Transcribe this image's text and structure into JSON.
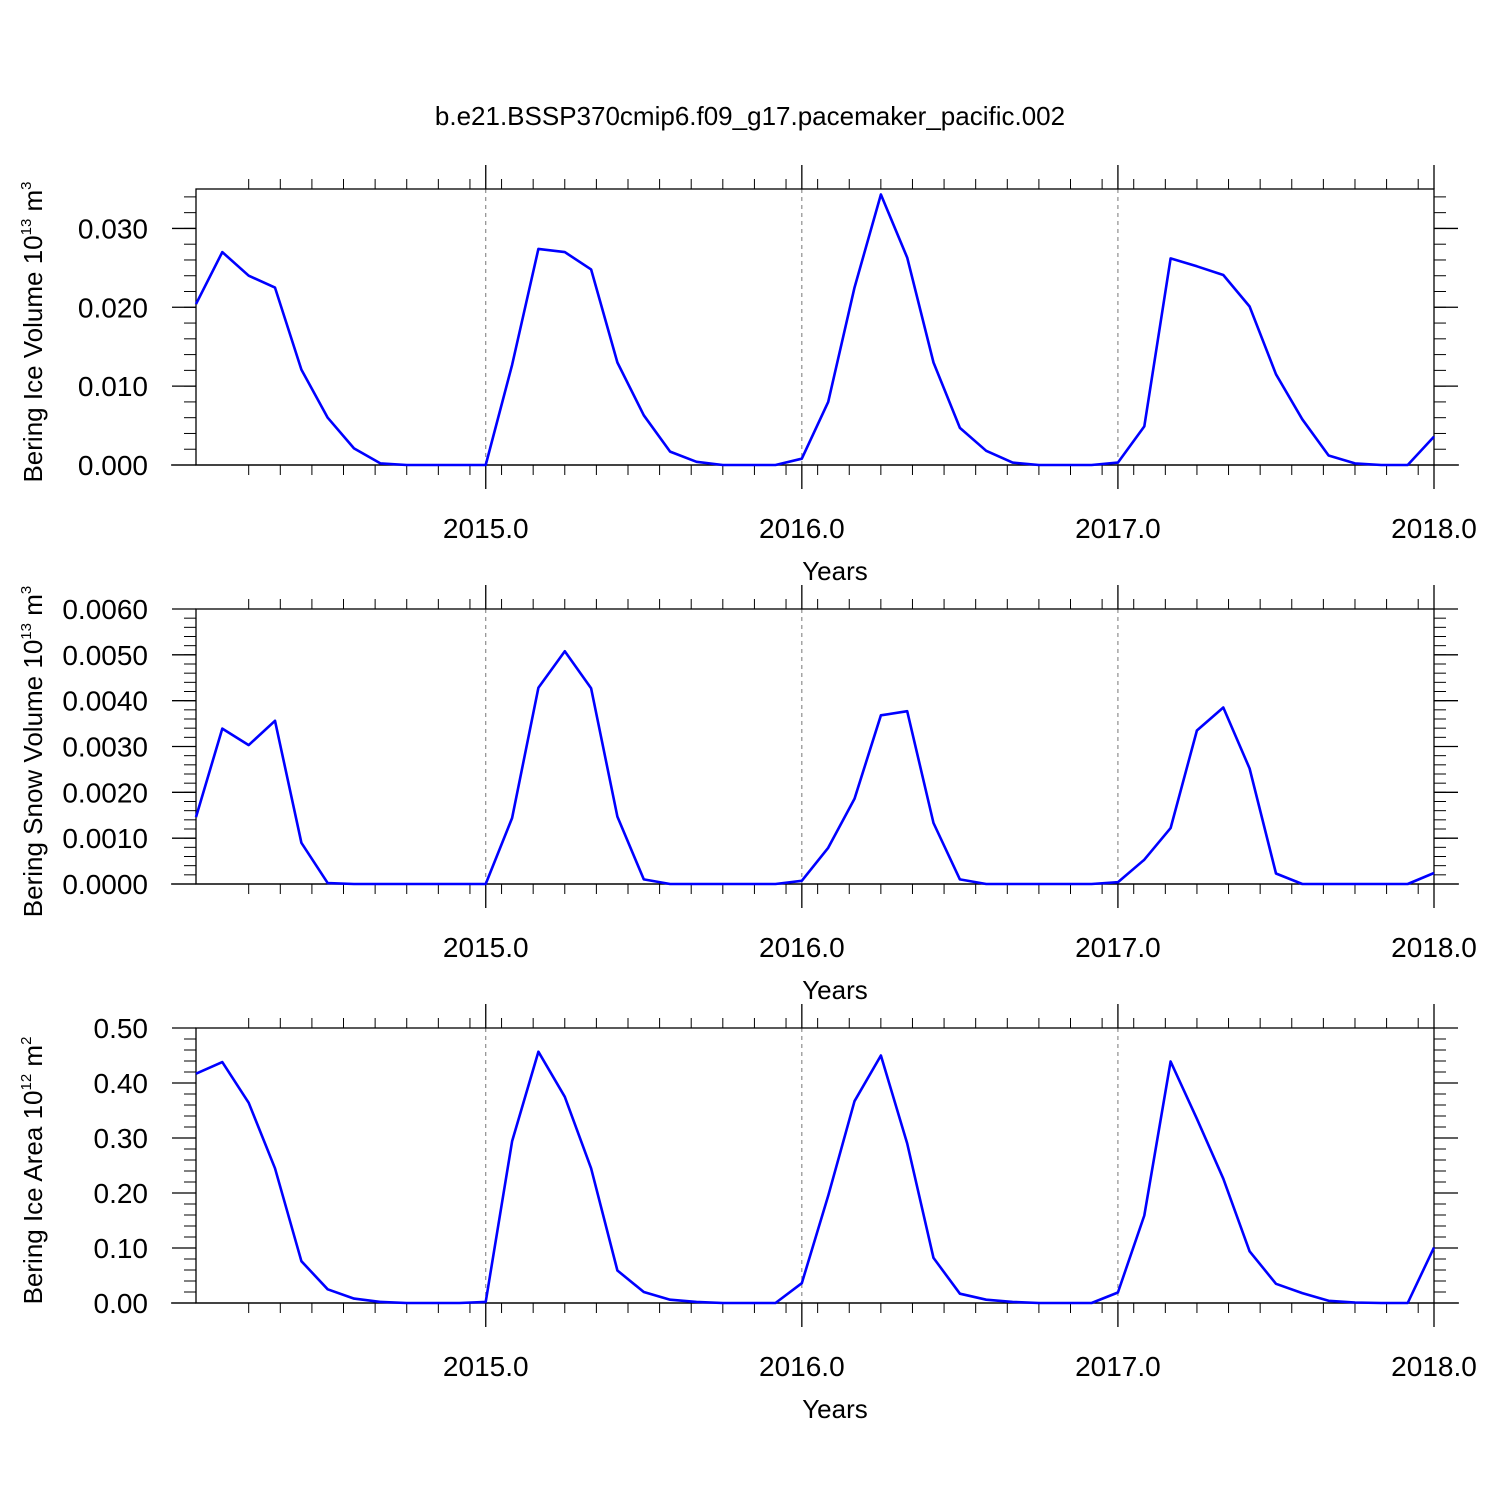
{
  "figure": {
    "title": "b.e21.BSSP370cmip6.f09_g17.pacemaker_pacific.002"
  },
  "chart_data": [
    {
      "type": "line",
      "ylabel": {
        "base": "Bering Ice Volume 10",
        "exp": "13",
        "unit": " m",
        "unit_exp": "3"
      },
      "xlabel": "Years",
      "xlim": [
        2014.0833,
        2018.0
      ],
      "ylim": [
        0.0,
        0.035
      ],
      "x_ticks": [
        2015.0,
        2016.0,
        2017.0,
        2018.0
      ],
      "x_tick_labels": [
        "2015.0",
        "2016.0",
        "2017.0",
        "2018.0"
      ],
      "y_ticks": [
        0.0,
        0.01,
        0.02,
        0.03
      ],
      "y_tick_labels": [
        "0.000",
        "0.010",
        "0.020",
        "0.030"
      ],
      "grid": "dashed vertical at year marks",
      "line_color": "#0000ff",
      "series": [
        {
          "values": [
            0.0204,
            0.027,
            0.024,
            0.0225,
            0.0121,
            0.006,
            0.0021,
            0.0002,
            0.0,
            0.0,
            0.0,
            0.0,
            0.0127,
            0.0274,
            0.027,
            0.0248,
            0.013,
            0.0063,
            0.0017,
            0.0004,
            0.0,
            0.0,
            0.0,
            0.0008,
            0.008,
            0.0225,
            0.0343,
            0.0263,
            0.013,
            0.0047,
            0.0018,
            0.0003,
            0.0,
            0.0,
            0.0,
            0.0003,
            0.0049,
            0.0262,
            0.0252,
            0.0241,
            0.0201,
            0.0115,
            0.0058,
            0.0012,
            0.0002,
            0.0,
            0.0,
            0.0036
          ]
        }
      ]
    },
    {
      "type": "line",
      "ylabel": {
        "base": "Bering Snow Volume 10",
        "exp": "13",
        "unit": " m",
        "unit_exp": "3"
      },
      "xlabel": "Years",
      "xlim": [
        2014.0833,
        2018.0
      ],
      "ylim": [
        0.0,
        0.006
      ],
      "x_ticks": [
        2015.0,
        2016.0,
        2017.0,
        2018.0
      ],
      "x_tick_labels": [
        "2015.0",
        "2016.0",
        "2017.0",
        "2018.0"
      ],
      "y_ticks": [
        0.0,
        0.001,
        0.002,
        0.003,
        0.004,
        0.005,
        0.006
      ],
      "y_tick_labels": [
        "0.0000",
        "0.0010",
        "0.0020",
        "0.0030",
        "0.0040",
        "0.0050",
        "0.0060"
      ],
      "grid": "dashed vertical at year marks",
      "line_color": "#0000ff",
      "series": [
        {
          "values": [
            0.00146,
            0.00339,
            0.00303,
            0.00356,
            0.0009,
            2e-05,
            0.0,
            0.0,
            0.0,
            0.0,
            0.0,
            0.0,
            0.00144,
            0.00428,
            0.00508,
            0.00427,
            0.00147,
            0.0001,
            0.0,
            0.0,
            0.0,
            0.0,
            0.0,
            7e-05,
            0.00079,
            0.00186,
            0.00368,
            0.00377,
            0.00133,
            0.0001,
            0.0,
            0.0,
            0.0,
            0.0,
            0.0,
            4e-05,
            0.00053,
            0.00122,
            0.00335,
            0.00385,
            0.00252,
            0.00023,
            0.0,
            0.0,
            0.0,
            0.0,
            0.0,
            0.00024
          ]
        }
      ]
    },
    {
      "type": "line",
      "ylabel": {
        "base": "Bering Ice Area 10",
        "exp": "12",
        "unit": " m",
        "unit_exp": "2"
      },
      "xlabel": "Years",
      "xlim": [
        2014.0833,
        2018.0
      ],
      "ylim": [
        0.0,
        0.5
      ],
      "x_ticks": [
        2015.0,
        2016.0,
        2017.0,
        2018.0
      ],
      "x_tick_labels": [
        "2015.0",
        "2016.0",
        "2017.0",
        "2018.0"
      ],
      "y_ticks": [
        0.0,
        0.1,
        0.2,
        0.3,
        0.4,
        0.5
      ],
      "y_tick_labels": [
        "0.00",
        "0.10",
        "0.20",
        "0.30",
        "0.40",
        "0.50"
      ],
      "grid": "dashed vertical at year marks",
      "line_color": "#0000ff",
      "series": [
        {
          "values": [
            0.417,
            0.438,
            0.364,
            0.245,
            0.076,
            0.025,
            0.008,
            0.002,
            0.0,
            0.0,
            0.0,
            0.002,
            0.294,
            0.457,
            0.375,
            0.245,
            0.059,
            0.02,
            0.006,
            0.002,
            0.0,
            0.0,
            0.0,
            0.036,
            0.195,
            0.367,
            0.45,
            0.29,
            0.082,
            0.017,
            0.006,
            0.002,
            0.0,
            0.0,
            0.0,
            0.019,
            0.159,
            0.439,
            0.335,
            0.226,
            0.094,
            0.035,
            0.018,
            0.004,
            0.001,
            0.0,
            0.0,
            0.101
          ]
        }
      ]
    }
  ]
}
